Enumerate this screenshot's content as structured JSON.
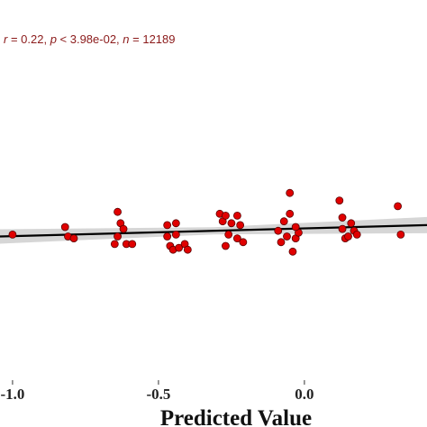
{
  "chart_data": {
    "type": "scatter",
    "x_label": "Predicted Value",
    "annotation": [
      "r",
      " = 0.22, ",
      "p",
      " < 3.98e-02, ",
      "n",
      " = 12189"
    ],
    "xlim": [
      -1.043,
      0.42
    ],
    "ylim": [
      -1,
      1
    ],
    "xticks": [
      {
        "value": -1.0,
        "label": "-1.0"
      },
      {
        "value": -0.5,
        "label": "-0.5"
      },
      {
        "value": 0.0,
        "label": "0.0"
      }
    ],
    "color": "#e00000",
    "fit_color": "#000000",
    "fit": {
      "x": [
        -1.043,
        0.42
      ],
      "y": [
        -0.25,
        -0.19
      ]
    },
    "x": [
      -1.0,
      -0.82,
      -0.81,
      -0.79,
      -0.64,
      -0.63,
      -0.64,
      -0.62,
      -0.65,
      -0.61,
      -0.59,
      -0.47,
      -0.47,
      -0.46,
      -0.44,
      -0.44,
      -0.45,
      -0.43,
      -0.41,
      -0.4,
      -0.29,
      -0.28,
      -0.27,
      -0.26,
      -0.25,
      -0.23,
      -0.23,
      -0.27,
      -0.21,
      -0.22,
      -0.09,
      -0.08,
      -0.07,
      -0.06,
      -0.05,
      -0.04,
      -0.05,
      -0.03,
      -0.02,
      -0.03,
      0.12,
      0.13,
      0.13,
      0.14,
      0.16,
      0.17,
      0.18,
      0.32,
      0.33,
      0.15
    ],
    "y": [
      -0.24,
      -0.2,
      -0.25,
      -0.26,
      -0.12,
      -0.18,
      -0.25,
      -0.21,
      -0.29,
      -0.29,
      -0.29,
      -0.19,
      -0.25,
      -0.3,
      -0.18,
      -0.24,
      -0.32,
      -0.31,
      -0.29,
      -0.32,
      -0.13,
      -0.17,
      -0.14,
      -0.24,
      -0.18,
      -0.26,
      -0.14,
      -0.3,
      -0.28,
      -0.19,
      -0.22,
      -0.28,
      -0.17,
      -0.25,
      -0.13,
      -0.33,
      -0.02,
      -0.26,
      -0.23,
      -0.2,
      -0.06,
      -0.15,
      -0.21,
      -0.26,
      -0.18,
      -0.22,
      -0.24,
      -0.09,
      -0.24,
      -0.25
    ]
  }
}
